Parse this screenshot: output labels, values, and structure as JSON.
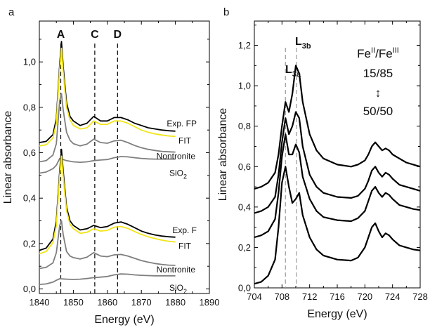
{
  "figure": {
    "panel_a_label": "a",
    "panel_b_label": "b"
  },
  "chart_data": [
    {
      "type": "line",
      "panel": "a",
      "xlabel": "Energy (eV)",
      "ylabel": "Linear absorbance",
      "xlim": [
        1840,
        1890
      ],
      "ylim": [
        -0.02,
        1.18
      ],
      "xticks": [
        "1840",
        "1850",
        "1860",
        "1870",
        "1880",
        "1890"
      ],
      "yticks": [
        "0,0",
        "0,2",
        "0,4",
        "0,6",
        "0,8",
        "1,0"
      ],
      "ytick_values": [
        0.0,
        0.2,
        0.4,
        0.6,
        0.8,
        1.0
      ],
      "xtick_values": [
        1840,
        1850,
        1860,
        1870,
        1880,
        1890
      ],
      "grid": false,
      "colors": {
        "exp": "#000000",
        "fit": "#f2e51a",
        "ref": "#7f7f7f",
        "marker": "#000000"
      },
      "markers": [
        {
          "label": "A",
          "x": 1846.3
        },
        {
          "label": "C",
          "x": 1856.3
        },
        {
          "label": "D",
          "x": 1863.0
        }
      ],
      "series": [
        {
          "name": "Exp. FP",
          "color": "#000000",
          "x": [
            1840,
            1842,
            1844,
            1845,
            1846,
            1846.5,
            1847,
            1848,
            1849,
            1850,
            1852,
            1854,
            1856,
            1858,
            1860,
            1862,
            1864,
            1866,
            1868,
            1870,
            1872,
            1874,
            1876,
            1878,
            1880
          ],
          "y": [
            0.645,
            0.65,
            0.68,
            0.75,
            0.99,
            1.09,
            0.98,
            0.82,
            0.76,
            0.74,
            0.72,
            0.73,
            0.76,
            0.74,
            0.74,
            0.755,
            0.755,
            0.745,
            0.73,
            0.72,
            0.71,
            0.705,
            0.7,
            0.697,
            0.695
          ]
        },
        {
          "name": "FIT",
          "color": "#f2e51a",
          "x": [
            1840,
            1842,
            1844,
            1845,
            1846,
            1846.5,
            1847,
            1848,
            1849,
            1850,
            1852,
            1854,
            1856,
            1858,
            1860,
            1862,
            1864,
            1866,
            1868,
            1870,
            1872,
            1874,
            1876,
            1878,
            1880
          ],
          "y": [
            0.63,
            0.635,
            0.665,
            0.73,
            0.97,
            1.06,
            0.955,
            0.8,
            0.745,
            0.72,
            0.705,
            0.71,
            0.74,
            0.725,
            0.725,
            0.74,
            0.74,
            0.73,
            0.715,
            0.7,
            0.69,
            0.683,
            0.678,
            0.674,
            0.672
          ]
        },
        {
          "name": "Nontronite",
          "color": "#7f7f7f",
          "x": [
            1840,
            1842,
            1844,
            1845,
            1846,
            1846.5,
            1847,
            1848,
            1849,
            1850,
            1852,
            1854,
            1856,
            1858,
            1860,
            1862,
            1864,
            1866,
            1868,
            1870,
            1872,
            1874,
            1876,
            1878,
            1880
          ],
          "y": [
            0.56,
            0.565,
            0.59,
            0.64,
            0.83,
            0.86,
            0.79,
            0.69,
            0.655,
            0.64,
            0.63,
            0.638,
            0.66,
            0.645,
            0.642,
            0.652,
            0.655,
            0.645,
            0.632,
            0.622,
            0.615,
            0.61,
            0.606,
            0.604,
            0.603
          ]
        },
        {
          "name": "SiO2",
          "color": "#7f7f7f",
          "x": [
            1840,
            1842,
            1844,
            1845,
            1846,
            1847,
            1848,
            1850,
            1852,
            1854,
            1856,
            1858,
            1860,
            1862,
            1864,
            1866,
            1868,
            1870,
            1872,
            1874,
            1876,
            1878,
            1880
          ],
          "y": [
            0.51,
            0.515,
            0.53,
            0.545,
            0.575,
            0.57,
            0.565,
            0.56,
            0.558,
            0.56,
            0.565,
            0.568,
            0.57,
            0.578,
            0.583,
            0.582,
            0.578,
            0.575,
            0.573,
            0.572,
            0.572,
            0.572,
            0.572
          ]
        },
        {
          "name": "Exp. F",
          "color": "#000000",
          "x": [
            1840,
            1842,
            1844,
            1845,
            1846,
            1846.5,
            1847,
            1848,
            1849,
            1850,
            1852,
            1854,
            1856,
            1858,
            1860,
            1862,
            1864,
            1866,
            1868,
            1870,
            1872,
            1874,
            1876,
            1878,
            1880
          ],
          "y": [
            0.17,
            0.18,
            0.22,
            0.3,
            0.52,
            0.615,
            0.52,
            0.36,
            0.3,
            0.28,
            0.26,
            0.265,
            0.28,
            0.27,
            0.275,
            0.29,
            0.295,
            0.285,
            0.27,
            0.255,
            0.245,
            0.238,
            0.233,
            0.23,
            0.228
          ]
        },
        {
          "name": "FIT",
          "color": "#f2e51a",
          "x": [
            1840,
            1842,
            1844,
            1845,
            1846,
            1846.5,
            1847,
            1848,
            1849,
            1850,
            1852,
            1854,
            1856,
            1858,
            1860,
            1862,
            1864,
            1866,
            1868,
            1870,
            1872,
            1874,
            1876,
            1878,
            1880
          ],
          "y": [
            0.155,
            0.165,
            0.205,
            0.28,
            0.5,
            0.585,
            0.495,
            0.345,
            0.285,
            0.265,
            0.245,
            0.25,
            0.265,
            0.255,
            0.258,
            0.272,
            0.275,
            0.267,
            0.253,
            0.24,
            0.23,
            0.222,
            0.215,
            0.21,
            0.207
          ]
        },
        {
          "name": "Nontronite",
          "color": "#7f7f7f",
          "x": [
            1840,
            1842,
            1844,
            1845,
            1846,
            1846.5,
            1847,
            1848,
            1849,
            1850,
            1852,
            1854,
            1856,
            1858,
            1860,
            1862,
            1864,
            1866,
            1868,
            1870,
            1872,
            1874,
            1876,
            1878,
            1880
          ],
          "y": [
            0.09,
            0.095,
            0.115,
            0.16,
            0.28,
            0.3,
            0.24,
            0.165,
            0.145,
            0.138,
            0.132,
            0.14,
            0.16,
            0.145,
            0.142,
            0.15,
            0.152,
            0.145,
            0.135,
            0.125,
            0.118,
            0.112,
            0.108,
            0.105,
            0.104
          ]
        },
        {
          "name": "SiO2",
          "color": "#7f7f7f",
          "x": [
            1840,
            1842,
            1844,
            1845,
            1846,
            1847,
            1848,
            1850,
            1852,
            1854,
            1856,
            1858,
            1860,
            1862,
            1864,
            1866,
            1868,
            1870,
            1872,
            1874,
            1876,
            1878,
            1880
          ],
          "y": [
            0.02,
            0.022,
            0.03,
            0.038,
            0.045,
            0.044,
            0.043,
            0.042,
            0.043,
            0.046,
            0.05,
            0.052,
            0.055,
            0.062,
            0.066,
            0.065,
            0.062,
            0.06,
            0.059,
            0.058,
            0.058,
            0.058,
            0.058
          ]
        }
      ],
      "labels": [
        {
          "text": "Exp. FP",
          "series": 0
        },
        {
          "text": "FIT",
          "series": 1
        },
        {
          "text": "Nontronite",
          "series": 2
        },
        {
          "text": "SiO",
          "sub": "2",
          "series": 3
        },
        {
          "text": "Exp. F",
          "series": 4
        },
        {
          "text": "FIT",
          "series": 5
        },
        {
          "text": "Nontronite",
          "series": 6
        },
        {
          "text": "SiO",
          "sub": "2",
          "series": 7
        }
      ]
    },
    {
      "type": "line",
      "panel": "b",
      "xlabel": "Energy (eV)",
      "ylabel": "Linear absorbance",
      "xlim": [
        704,
        728
      ],
      "ylim": [
        0,
        1.32
      ],
      "xticks": [
        "704",
        "708",
        "712",
        "716",
        "720",
        "724",
        "728"
      ],
      "xtick_values": [
        704,
        708,
        712,
        716,
        720,
        724,
        728
      ],
      "yticks": [
        "0,0",
        "0,2",
        "0,4",
        "0,6",
        "0,8",
        "1,0",
        "1,2"
      ],
      "ytick_values": [
        0.0,
        0.2,
        0.4,
        0.6,
        0.8,
        1.0,
        1.2
      ],
      "grid": false,
      "colors": {
        "line": "#000000",
        "marker": "#9a9a9a"
      },
      "markers": [
        {
          "label": "L",
          "sub": "3a",
          "x": 708.5
        },
        {
          "label": "L",
          "sub": "3b",
          "x": 710.1
        }
      ],
      "annotation": {
        "ratio_label": "Fe",
        "sup1": "II",
        "slash": "/Fe",
        "sup2": "III",
        "from": "15/85",
        "arrow": "↕",
        "to": "50/50"
      },
      "series": [
        {
          "x": [
            704,
            705,
            706,
            707,
            707.5,
            708,
            708.5,
            709,
            709.5,
            710,
            710.5,
            711,
            712,
            713,
            714,
            716,
            718,
            719,
            720,
            720.5,
            721,
            721.5,
            722,
            722.5,
            723,
            723.5,
            724,
            725,
            726,
            727,
            728
          ],
          "y": [
            0.49,
            0.5,
            0.52,
            0.57,
            0.66,
            0.8,
            0.92,
            0.87,
            0.96,
            1.1,
            1.06,
            0.92,
            0.76,
            0.68,
            0.64,
            0.61,
            0.6,
            0.61,
            0.63,
            0.66,
            0.7,
            0.72,
            0.7,
            0.68,
            0.69,
            0.68,
            0.66,
            0.64,
            0.62,
            0.61,
            0.6
          ]
        },
        {
          "x": [
            704,
            705,
            706,
            707,
            707.5,
            708,
            708.5,
            709,
            709.5,
            710,
            710.5,
            711,
            712,
            713,
            714,
            716,
            718,
            719,
            720,
            720.5,
            721,
            721.5,
            722,
            722.5,
            723,
            723.5,
            724,
            725,
            726,
            727,
            728
          ],
          "y": [
            0.37,
            0.38,
            0.4,
            0.45,
            0.56,
            0.72,
            0.84,
            0.76,
            0.8,
            0.87,
            0.84,
            0.7,
            0.56,
            0.5,
            0.47,
            0.45,
            0.445,
            0.455,
            0.49,
            0.53,
            0.58,
            0.6,
            0.57,
            0.55,
            0.57,
            0.56,
            0.54,
            0.51,
            0.5,
            0.49,
            0.48
          ]
        },
        {
          "x": [
            704,
            705,
            706,
            707,
            707.5,
            708,
            708.5,
            709,
            709.5,
            710,
            710.5,
            711,
            712,
            713,
            714,
            716,
            718,
            719,
            720,
            720.5,
            721,
            721.5,
            722,
            722.5,
            723,
            723.5,
            724,
            725,
            726,
            727,
            728
          ],
          "y": [
            0.25,
            0.26,
            0.28,
            0.34,
            0.47,
            0.65,
            0.76,
            0.66,
            0.66,
            0.71,
            0.67,
            0.55,
            0.44,
            0.38,
            0.35,
            0.335,
            0.33,
            0.345,
            0.38,
            0.43,
            0.48,
            0.5,
            0.47,
            0.45,
            0.47,
            0.46,
            0.44,
            0.41,
            0.4,
            0.39,
            0.385
          ]
        },
        {
          "x": [
            704,
            705,
            706,
            707,
            707.5,
            708,
            708.5,
            709,
            709.5,
            710,
            710.5,
            711,
            712,
            713,
            714,
            716,
            718,
            719,
            720,
            720.5,
            721,
            721.5,
            722,
            722.5,
            723,
            723.5,
            724,
            725,
            726,
            727,
            728
          ],
          "y": [
            0.02,
            0.03,
            0.06,
            0.14,
            0.3,
            0.52,
            0.6,
            0.5,
            0.42,
            0.44,
            0.47,
            0.36,
            0.25,
            0.19,
            0.16,
            0.14,
            0.135,
            0.15,
            0.2,
            0.25,
            0.3,
            0.32,
            0.28,
            0.25,
            0.27,
            0.26,
            0.24,
            0.21,
            0.2,
            0.19,
            0.185
          ]
        }
      ]
    }
  ]
}
